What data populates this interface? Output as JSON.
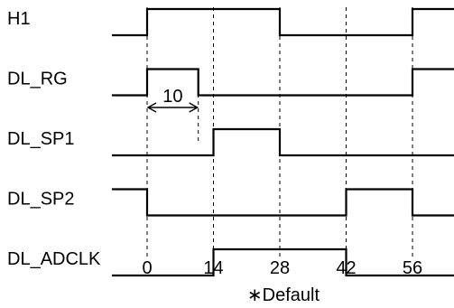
{
  "signals": [
    {
      "name": "H1",
      "initial": 0,
      "edges": [
        0,
        28,
        56
      ]
    },
    {
      "name": "DL_RG",
      "initial": 0,
      "edges": [
        0,
        10.8,
        56
      ]
    },
    {
      "name": "DL_SP1",
      "initial": 0,
      "edges": [
        14,
        28
      ]
    },
    {
      "name": "DL_SP2",
      "initial": 1,
      "edges": [
        0,
        42,
        56
      ]
    },
    {
      "name": "DL_ADCLK",
      "initial": 0,
      "edges": [
        14,
        42
      ]
    }
  ],
  "time_ticks": [
    "0",
    "14",
    "28",
    "42",
    "56"
  ],
  "annotation": {
    "label": "10",
    "from": 0,
    "to": 10.8
  },
  "footnote": "∗Default"
}
